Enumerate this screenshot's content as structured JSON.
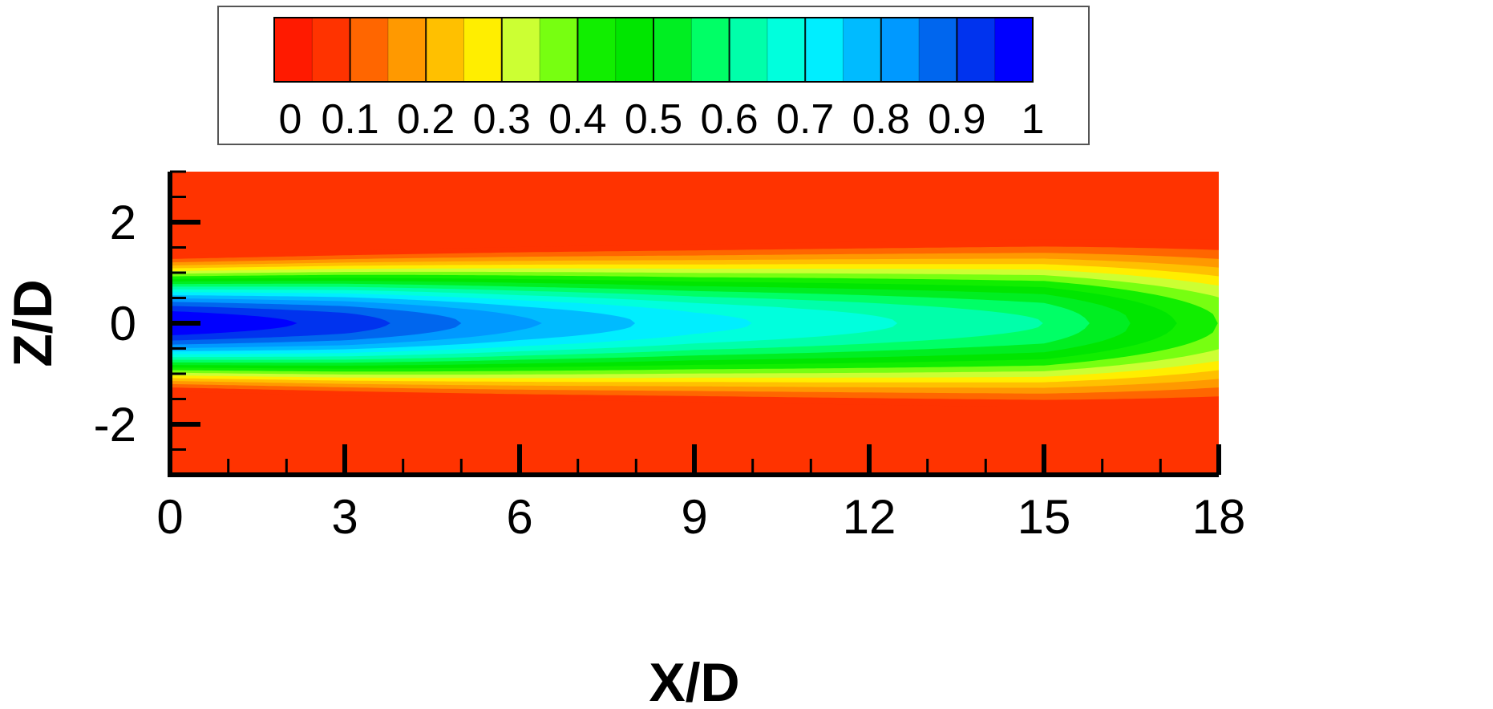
{
  "chart_data": {
    "type": "heatmap",
    "subtype": "filled-contour",
    "xlabel": "X/D",
    "ylabel": "Z/D",
    "xlim": [
      0,
      18
    ],
    "ylim": [
      -3,
      3
    ],
    "x_ticks": [
      "0",
      "3",
      "6",
      "9",
      "12",
      "15",
      "18"
    ],
    "y_ticks": [
      "2",
      "0",
      "-2"
    ],
    "x_tick_values": [
      0,
      3,
      6,
      9,
      12,
      15,
      18
    ],
    "y_tick_values": [
      2,
      0,
      -2
    ],
    "colorbar": {
      "min": 0,
      "max": 1,
      "tick_labels": [
        "0",
        "0.1",
        "0.2",
        "0.3",
        "0.4",
        "0.5",
        "0.6",
        "0.7",
        "0.8",
        "0.9",
        "1"
      ],
      "tick_values": [
        0,
        0.1,
        0.2,
        0.3,
        0.4,
        0.5,
        0.6,
        0.7,
        0.8,
        0.9,
        1.0
      ],
      "colors": [
        "#ff1a00",
        "#ff3300",
        "#ff6600",
        "#ff9900",
        "#ffc000",
        "#ffee00",
        "#ccff33",
        "#77ff11",
        "#11ee00",
        "#00e600",
        "#00ee22",
        "#00ff66",
        "#00ffaa",
        "#00ffdd",
        "#00eeff",
        "#00bbff",
        "#0099ff",
        "#0066ee",
        "#0033ee",
        "#0000ff"
      ],
      "position": "top"
    },
    "field": {
      "description_of_values": "centreline value decays from 1.0 at X/D=0 to about 0.4 at X/D=18; wake half-width grows from about 1.5 to about 2.0",
      "centerline_x": [
        0,
        3,
        6,
        9,
        12,
        15,
        18
      ],
      "centerline_value": [
        1.0,
        0.93,
        0.81,
        0.72,
        0.66,
        0.6,
        0.4
      ],
      "half_width_x": [
        0,
        6,
        12,
        18
      ],
      "half_width": [
        1.5,
        1.7,
        1.85,
        2.0
      ]
    }
  }
}
